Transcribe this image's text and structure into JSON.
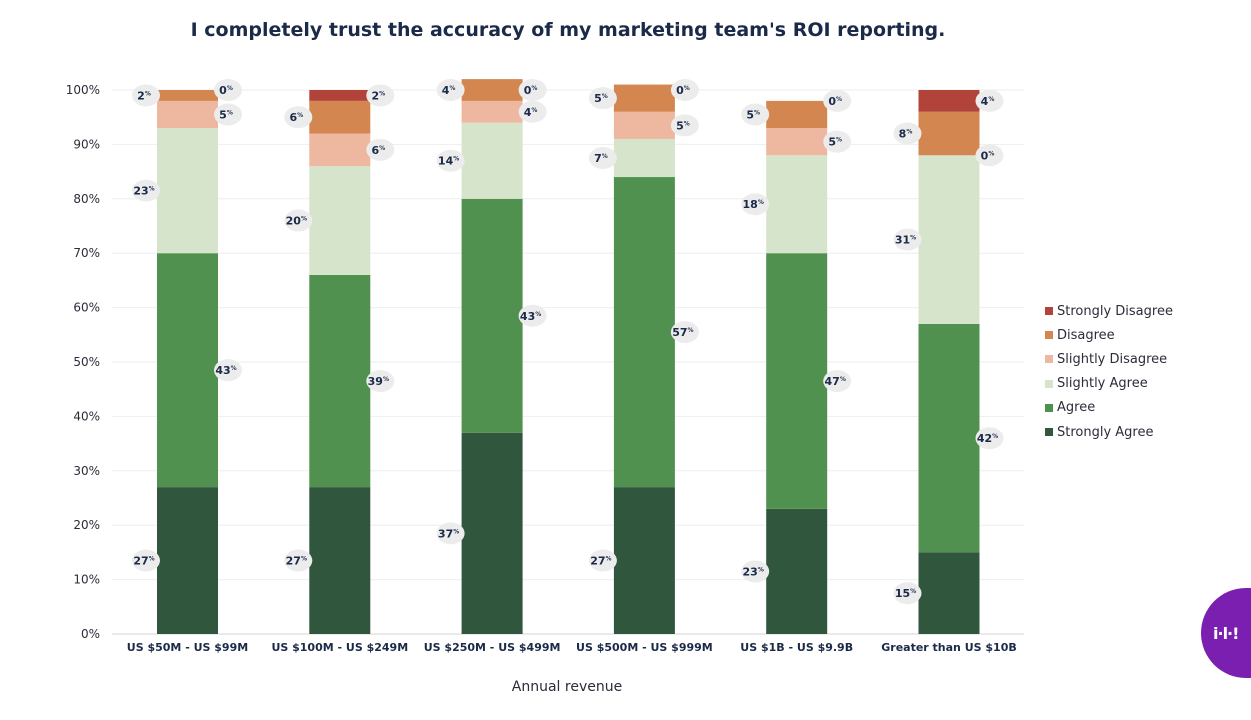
{
  "chart_data": {
    "type": "bar",
    "stacked": true,
    "title": "I completely trust the accuracy of my marketing team's ROI reporting.",
    "xlabel": "Annual revenue",
    "ylabel": "",
    "ylim": [
      0,
      100
    ],
    "yticks": [
      "0%",
      "10%",
      "20%",
      "30%",
      "40%",
      "50%",
      "60%",
      "70%",
      "80%",
      "90%",
      "100%"
    ],
    "grid": true,
    "legend_position": "right",
    "value_suffix": "%",
    "categories": [
      "US $50M - US $99M",
      "US $100M - US $249M",
      "US $250M - US $499M",
      "US $500M - US $999M",
      "US $1B - US $9.9B",
      "Greater than US $10B"
    ],
    "series": [
      {
        "name": "Strongly Agree",
        "color": "#30573e",
        "values": [
          27,
          27,
          37,
          27,
          23,
          15
        ]
      },
      {
        "name": "Agree",
        "color": "#519150",
        "values": [
          43,
          39,
          43,
          57,
          47,
          42
        ]
      },
      {
        "name": "Slightly Agree",
        "color": "#d7e4cc",
        "values": [
          23,
          20,
          14,
          7,
          18,
          31
        ]
      },
      {
        "name": "Slightly Disagree",
        "color": "#eeb7a0",
        "values": [
          5,
          6,
          4,
          5,
          5,
          0
        ]
      },
      {
        "name": "Disagree",
        "color": "#d38650",
        "values": [
          2,
          6,
          4,
          5,
          5,
          8
        ]
      },
      {
        "name": "Strongly Disagree",
        "color": "#b1433b",
        "values": [
          0,
          2,
          0,
          0,
          0,
          4
        ]
      }
    ]
  },
  "legend": {
    "items": [
      {
        "label": "Strongly Disagree",
        "color": "#b1433b"
      },
      {
        "label": "Disagree",
        "color": "#d38650"
      },
      {
        "label": "Slightly Disagree",
        "color": "#eeb7a0"
      },
      {
        "label": "Slightly Agree",
        "color": "#d7e4cc"
      },
      {
        "label": "Agree",
        "color": "#519150"
      },
      {
        "label": "Strongly Agree",
        "color": "#30573e"
      }
    ]
  },
  "brand": {
    "logo_text": "i·l·!",
    "color": "#7a1fb0"
  }
}
